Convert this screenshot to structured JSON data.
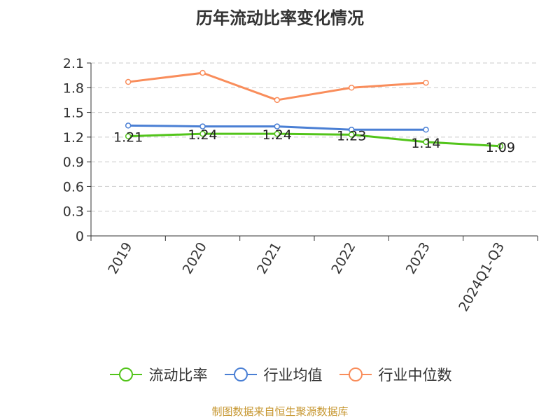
{
  "chart_data": {
    "type": "line",
    "title": "历年流动比率变化情况",
    "categories": [
      "2019",
      "2020",
      "2021",
      "2022",
      "2023",
      "2024Q1-Q3"
    ],
    "ylim": [
      0,
      2.1
    ],
    "yticks": [
      "0",
      "0.3",
      "0.6",
      "0.9",
      "1.2",
      "1.5",
      "1.8",
      "2.1"
    ],
    "grid": true,
    "legend_position": "bottom",
    "series": [
      {
        "name": "流动比率",
        "color": "#52c41a",
        "values": [
          1.21,
          1.24,
          1.24,
          1.23,
          1.14,
          1.09
        ],
        "labels": [
          "1.21",
          "1.24",
          "1.24",
          "1.23",
          "1.14",
          "1.09"
        ]
      },
      {
        "name": "行业均值",
        "color": "#4a7fd4",
        "values": [
          1.34,
          1.33,
          1.33,
          1.29,
          1.29,
          null
        ]
      },
      {
        "name": "行业中位数",
        "color": "#f98d5b",
        "values": [
          1.87,
          1.98,
          1.65,
          1.8,
          1.86,
          null
        ]
      }
    ]
  },
  "footer": {
    "source_text": "制图数据来自恒生聚源数据库"
  }
}
